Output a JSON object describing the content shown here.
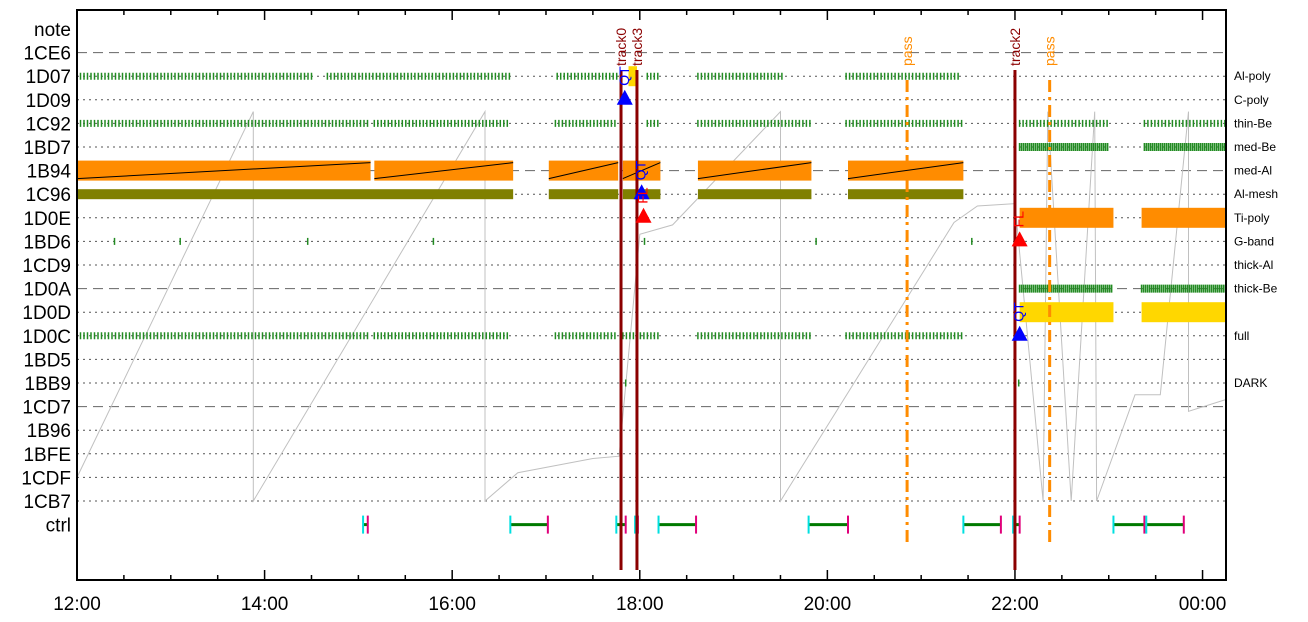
{
  "chart_data": {
    "type": "timeline",
    "x_axis": {
      "tick_labels": [
        "12:00",
        "14:00",
        "16:00",
        "18:00",
        "20:00",
        "22:00",
        "00:00"
      ],
      "tick_hours": [
        12,
        14,
        16,
        18,
        20,
        22,
        24
      ],
      "range_hours": [
        12.0,
        24.25
      ],
      "minor_tick_step_hours": 0.5
    },
    "y_rows": [
      "note",
      "1CE6",
      "1D07",
      "1D09",
      "1C92",
      "1BD7",
      "1B94",
      "1C96",
      "1D0E",
      "1BD6",
      "1CD9",
      "1D0A",
      "1D0D",
      "1D0C",
      "1BD5",
      "1BB9",
      "1CD7",
      "1B96",
      "1BFE",
      "1CDF",
      "1CB7",
      "ctrl"
    ],
    "dashed_rows": [
      "1CE6",
      "1B94",
      "1D0A",
      "1CD7"
    ],
    "right_labels": [
      {
        "row": "1D07",
        "text": "Al-poly"
      },
      {
        "row": "1D09",
        "text": "C-poly"
      },
      {
        "row": "1C92",
        "text": "thin-Be"
      },
      {
        "row": "1BD7",
        "text": "med-Be"
      },
      {
        "row": "1B94",
        "text": "med-Al"
      },
      {
        "row": "1C96",
        "text": "Al-mesh"
      },
      {
        "row": "1D0E",
        "text": "Ti-poly"
      },
      {
        "row": "1BD6",
        "text": "G-band"
      },
      {
        "row": "1CD9",
        "text": "thick-Al"
      },
      {
        "row": "1D0A",
        "text": "thick-Be"
      },
      {
        "row": "1D0C",
        "text": "full"
      },
      {
        "row": "1BB9",
        "text": "DARK"
      }
    ],
    "markers": [
      {
        "label": "track0",
        "time": 17.8,
        "color": "#8b0000",
        "style": "solid"
      },
      {
        "label": "track3",
        "time": 17.97,
        "color": "#8b0000",
        "style": "solid"
      },
      {
        "label": "track2",
        "time": 22.0,
        "color": "#8b0000",
        "style": "solid"
      },
      {
        "label": "pass",
        "time": 20.85,
        "color": "#ff8c00",
        "style": "dashdot"
      },
      {
        "label": "pass",
        "time": 22.37,
        "color": "#ff8c00",
        "style": "dashdot"
      }
    ],
    "events": [
      {
        "label": "QT",
        "time": 17.84,
        "row": "1D09",
        "color": "#0000ff"
      },
      {
        "label": "QT",
        "time": 18.02,
        "row": "1C96",
        "color": "#0000ff"
      },
      {
        "label": "FL",
        "time": 18.04,
        "row": "1D0E",
        "color": "#ff0000"
      },
      {
        "label": "FL",
        "time": 22.05,
        "row": "1BD6",
        "color": "#ff0000"
      },
      {
        "label": "QT",
        "time": 22.05,
        "row": "1D0C",
        "color": "#0000ff"
      }
    ],
    "observation_intervals": [
      [
        12.0,
        15.13
      ],
      [
        15.17,
        16.65
      ],
      [
        17.03,
        18.05
      ],
      [
        18.2,
        18.22
      ],
      [
        18.62,
        19.83
      ],
      [
        20.22,
        21.45
      ],
      [
        22.05,
        23.05
      ],
      [
        23.35,
        24.25
      ]
    ],
    "segments": [
      {
        "row": "1D07",
        "kind": "ticks",
        "color": "#228b22",
        "ranges": [
          [
            12.0,
            14.52
          ],
          [
            14.67,
            16.62
          ],
          [
            17.12,
            17.77
          ],
          [
            18.08,
            18.22
          ],
          [
            18.62,
            19.52
          ],
          [
            20.2,
            21.4
          ]
        ]
      },
      {
        "row": "1D07",
        "kind": "bar",
        "color": "#ffd700",
        "ranges": [
          [
            17.88,
            17.97
          ]
        ]
      },
      {
        "row": "1C92",
        "kind": "ticks",
        "color": "#228b22",
        "ranges": [
          [
            12.0,
            15.13
          ],
          [
            15.17,
            16.62
          ],
          [
            17.1,
            17.77
          ],
          [
            18.08,
            18.22
          ],
          [
            18.62,
            19.83
          ],
          [
            20.2,
            21.45
          ],
          [
            22.05,
            23.0
          ],
          [
            23.38,
            24.25
          ]
        ]
      },
      {
        "row": "1BD7",
        "kind": "thickticks",
        "color": "#228b22",
        "ranges": [
          [
            22.05,
            23.0
          ],
          [
            23.38,
            24.25
          ]
        ]
      },
      {
        "row": "1B94",
        "kind": "bar",
        "color": "#ff8c00",
        "ranges": [
          [
            12.0,
            15.13
          ],
          [
            15.17,
            16.65
          ],
          [
            17.03,
            17.77
          ],
          [
            17.82,
            18.22
          ],
          [
            18.62,
            19.83
          ],
          [
            20.22,
            21.45
          ]
        ]
      },
      {
        "row": "1C96",
        "kind": "bar",
        "color": "#808000",
        "ranges": [
          [
            12.0,
            16.65
          ],
          [
            17.03,
            17.77
          ],
          [
            17.82,
            18.22
          ],
          [
            18.62,
            19.83
          ],
          [
            20.22,
            21.45
          ]
        ]
      },
      {
        "row": "1D0E",
        "kind": "bar",
        "color": "#ff8c00",
        "ranges": [
          [
            22.05,
            23.05
          ],
          [
            23.35,
            24.25
          ]
        ]
      },
      {
        "row": "1BD6",
        "kind": "ticks",
        "color": "#228b22",
        "ranges": [
          [
            12.4,
            12.42
          ],
          [
            13.1,
            13.12
          ],
          [
            14.46,
            14.48
          ],
          [
            15.8,
            15.82
          ],
          [
            17.8,
            17.82
          ],
          [
            18.05,
            18.07
          ],
          [
            19.88,
            19.9
          ],
          [
            21.54,
            21.56
          ],
          [
            22.0,
            22.02
          ]
        ]
      },
      {
        "row": "1D0A",
        "kind": "thickticks",
        "color": "#228b22",
        "ranges": [
          [
            22.05,
            23.05
          ],
          [
            23.35,
            24.25
          ]
        ]
      },
      {
        "row": "1D0D",
        "kind": "bar",
        "color": "#ffd700",
        "ranges": [
          [
            22.05,
            23.05
          ],
          [
            23.35,
            24.25
          ]
        ]
      },
      {
        "row": "1D0C",
        "kind": "ticks",
        "color": "#228b22",
        "ranges": [
          [
            12.0,
            15.13
          ],
          [
            15.17,
            16.62
          ],
          [
            17.1,
            17.77
          ],
          [
            17.82,
            18.22
          ],
          [
            18.62,
            19.83
          ],
          [
            20.2,
            21.45
          ]
        ]
      },
      {
        "row": "1BB9",
        "kind": "ticks",
        "color": "#228b22",
        "ranges": [
          [
            17.85,
            17.87
          ],
          [
            22.04,
            22.06
          ]
        ]
      }
    ],
    "ctrl_intervals": [
      [
        15.05,
        15.1
      ],
      [
        16.62,
        17.02
      ],
      [
        17.75,
        17.85
      ],
      [
        17.95,
        17.98
      ],
      [
        18.2,
        18.6
      ],
      [
        19.8,
        20.22
      ],
      [
        21.45,
        21.85
      ],
      [
        21.98,
        22.05
      ],
      [
        23.05,
        23.38
      ],
      [
        23.4,
        23.8
      ]
    ],
    "sawtooth": {
      "color": "#c0c0c0",
      "points": [
        [
          12.0,
          1.0
        ],
        [
          13.88,
          16.5
        ],
        [
          13.88,
          0.0
        ],
        [
          16.35,
          16.5
        ],
        [
          16.35,
          0.0
        ],
        [
          16.7,
          1.2
        ],
        [
          17.5,
          1.8
        ],
        [
          17.78,
          1.9
        ],
        [
          18.0,
          11.3
        ],
        [
          18.35,
          11.7
        ],
        [
          19.5,
          16.5
        ],
        [
          19.5,
          0.0
        ],
        [
          21.35,
          11.8
        ],
        [
          21.6,
          12.5
        ],
        [
          22.0,
          12.6
        ],
        [
          22.3,
          0.0
        ],
        [
          22.35,
          16.5
        ],
        [
          22.6,
          0.0
        ],
        [
          22.85,
          16.5
        ],
        [
          22.87,
          0.0
        ],
        [
          23.28,
          4.5
        ],
        [
          23.55,
          4.5
        ],
        [
          23.85,
          16.5
        ],
        [
          23.85,
          3.8
        ],
        [
          24.25,
          4.3
        ]
      ]
    }
  }
}
